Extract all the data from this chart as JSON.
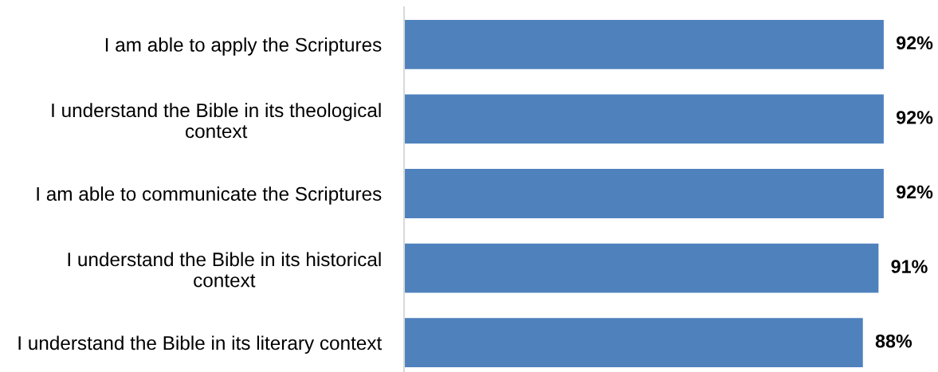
{
  "chart_data": {
    "type": "bar",
    "orientation": "horizontal",
    "categories": [
      "I am able to apply the Scriptures",
      "I understand the Bible in its theological\ncontext",
      "I am able to communicate the Scriptures",
      "I understand the Bible in its historical\ncontext",
      "I understand the Bible in its literary context"
    ],
    "values": [
      92,
      92,
      92,
      91,
      88
    ],
    "color": "#4f81bd",
    "value_labels": [
      "92%",
      "92%",
      "92%",
      "91%",
      "88%"
    ],
    "tick_labels": "y"
  }
}
